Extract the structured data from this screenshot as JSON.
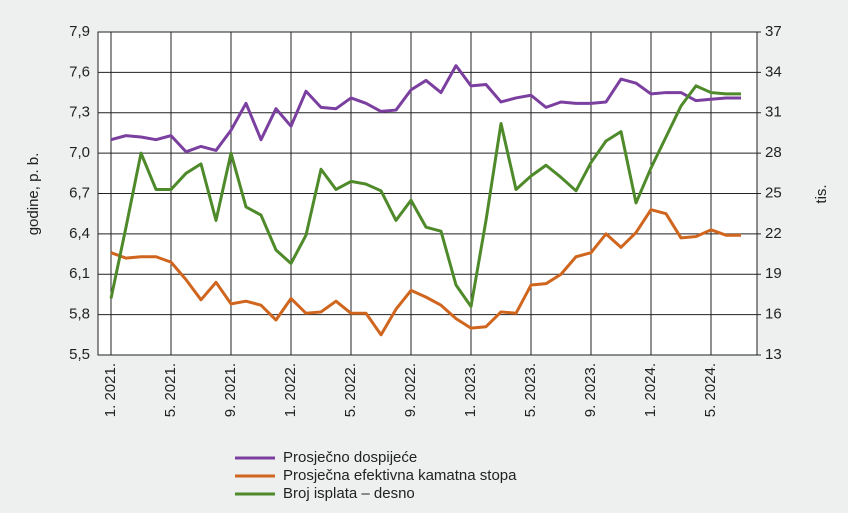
{
  "chart_data": {
    "type": "line",
    "y_label": "godine, p. b.",
    "y2_label": "tis.",
    "categories": [
      "1. 2021.",
      null,
      null,
      null,
      "5. 2021.",
      null,
      null,
      null,
      "9. 2021.",
      null,
      null,
      null,
      "1. 2022.",
      null,
      null,
      null,
      "5. 2022.",
      null,
      null,
      null,
      "9. 2022.",
      null,
      null,
      null,
      "1. 2023.",
      null,
      null,
      null,
      "5. 2023.",
      null,
      null,
      null,
      "9. 2023.",
      null,
      null,
      null,
      "1. 2024.",
      null,
      null,
      null,
      "5. 2024.",
      null,
      null
    ],
    "series": [
      {
        "name": "Prosječno dospijeće",
        "color": "#7b3fa0",
        "values": [
          7.1,
          7.13,
          7.12,
          7.1,
          7.13,
          7.01,
          7.05,
          7.02,
          7.17,
          7.37,
          7.1,
          7.33,
          7.2,
          7.46,
          7.34,
          7.33,
          7.41,
          7.37,
          7.31,
          7.32,
          7.47,
          7.54,
          7.45,
          7.65,
          7.5,
          7.51,
          7.38,
          7.41,
          7.43,
          7.34,
          7.38,
          7.37,
          7.37,
          7.38,
          7.55,
          7.52,
          7.44,
          7.45,
          7.45,
          7.39,
          7.4,
          7.41,
          7.41
        ]
      },
      {
        "name": "Prosječna efektivna kamatna stopa",
        "color": "#d0651e",
        "values": [
          6.26,
          6.22,
          6.23,
          6.23,
          6.19,
          6.06,
          5.91,
          6.04,
          5.88,
          5.9,
          5.87,
          5.76,
          5.92,
          5.81,
          5.82,
          5.9,
          5.81,
          5.81,
          5.65,
          5.84,
          5.98,
          5.93,
          5.87,
          5.77,
          5.7,
          5.71,
          5.82,
          5.81,
          6.02,
          6.03,
          6.1,
          6.23,
          6.26,
          6.4,
          6.3,
          6.41,
          6.58,
          6.55,
          6.37,
          6.38,
          6.43,
          6.39,
          6.39
        ]
      },
      {
        "name": "Broj isplata – desno",
        "color": "#4f8a2a",
        "axis": "y2",
        "values": [
          17.2,
          22.5,
          28.0,
          25.3,
          25.3,
          26.5,
          27.2,
          23.0,
          28.0,
          24.0,
          23.4,
          20.8,
          19.8,
          21.9,
          26.8,
          25.3,
          25.9,
          25.7,
          25.2,
          23.0,
          24.5,
          22.5,
          22.2,
          18.2,
          16.6,
          23.0,
          30.2,
          25.3,
          26.3,
          27.1,
          26.2,
          25.2,
          27.3,
          28.9,
          29.6,
          24.3,
          26.9,
          29.2,
          31.5,
          33.0,
          32.5,
          32.4,
          32.4
        ]
      }
    ],
    "ylim": [
      5.5,
      7.9
    ],
    "yticks": [
      {
        "value": 5.5,
        "label": "5,5"
      },
      {
        "value": 5.8,
        "label": "5,8"
      },
      {
        "value": 6.1,
        "label": "6,1"
      },
      {
        "value": 6.4,
        "label": "6,4"
      },
      {
        "value": 6.7,
        "label": "6,7"
      },
      {
        "value": 7.0,
        "label": "7,0"
      },
      {
        "value": 7.3,
        "label": "7,3"
      },
      {
        "value": 7.6,
        "label": "7,6"
      },
      {
        "value": 7.9,
        "label": "7,9"
      }
    ],
    "y2lim": [
      13,
      37
    ],
    "y2ticks": [
      13,
      16,
      19,
      22,
      25,
      28,
      31,
      34,
      37
    ],
    "grid": true,
    "legend": "bottom"
  }
}
